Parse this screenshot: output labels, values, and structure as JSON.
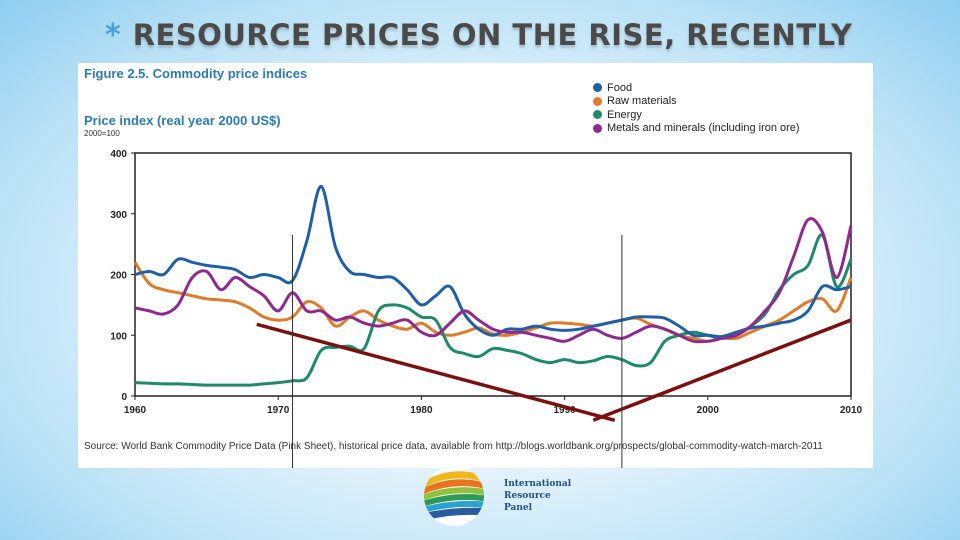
{
  "slide": {
    "title_star": "*",
    "title": "RESOURCE PRICES ON THE RISE, RECENTLY"
  },
  "figure": {
    "title": "Figure 2.5. Commodity price indices",
    "subtitle": "Price index (real year 2000 US$)",
    "basis": "2000=100",
    "source": "Source: World Bank Commodity Price Data (Pink Sheet), historical price data, available from http://blogs.worldbank.org/prospects/global-commodity-watch-march-2011"
  },
  "logo": {
    "line1": "International",
    "line2": "Resource",
    "line3": "Panel"
  },
  "chart_data": {
    "type": "line",
    "title": "Figure 2.5. Commodity price indices",
    "ylabel": "Price index (real year 2000 US$)",
    "xlim": [
      1960,
      2010
    ],
    "ylim": [
      0,
      400
    ],
    "x_ticks": [
      1960,
      1970,
      1980,
      1990,
      2000,
      2010
    ],
    "y_ticks": [
      0,
      100,
      200,
      300,
      400
    ],
    "grid": false,
    "legend_position": "top-right",
    "series": [
      {
        "name": "Food",
        "color": "#1f5fa8",
        "x": [
          1960,
          1961,
          1962,
          1963,
          1964,
          1965,
          1966,
          1967,
          1968,
          1969,
          1970,
          1971,
          1972,
          1973,
          1974,
          1975,
          1976,
          1977,
          1978,
          1979,
          1980,
          1981,
          1982,
          1983,
          1984,
          1985,
          1986,
          1987,
          1988,
          1989,
          1990,
          1991,
          1992,
          1993,
          1994,
          1995,
          1996,
          1997,
          1998,
          1999,
          2000,
          2001,
          2002,
          2003,
          2004,
          2005,
          2006,
          2007,
          2008,
          2009,
          2010
        ],
        "values": [
          200,
          205,
          200,
          225,
          220,
          215,
          212,
          208,
          195,
          200,
          195,
          190,
          255,
          345,
          245,
          205,
          200,
          195,
          195,
          175,
          150,
          165,
          180,
          135,
          110,
          100,
          110,
          110,
          115,
          110,
          108,
          110,
          115,
          120,
          125,
          130,
          130,
          128,
          115,
          100,
          100,
          98,
          105,
          112,
          115,
          120,
          125,
          140,
          180,
          175,
          180
        ]
      },
      {
        "name": "Raw materials",
        "color": "#e07b2a",
        "x": [
          1960,
          1961,
          1962,
          1963,
          1964,
          1965,
          1966,
          1967,
          1968,
          1969,
          1970,
          1971,
          1972,
          1973,
          1974,
          1975,
          1976,
          1977,
          1978,
          1979,
          1980,
          1981,
          1982,
          1983,
          1984,
          1985,
          1986,
          1987,
          1988,
          1989,
          1990,
          1991,
          1992,
          1993,
          1994,
          1995,
          1996,
          1997,
          1998,
          1999,
          2000,
          2001,
          2002,
          2003,
          2004,
          2005,
          2006,
          2007,
          2008,
          2009,
          2010
        ],
        "values": [
          220,
          185,
          175,
          170,
          165,
          160,
          158,
          155,
          145,
          130,
          125,
          130,
          155,
          145,
          115,
          130,
          140,
          125,
          115,
          110,
          120,
          105,
          100,
          105,
          112,
          102,
          100,
          105,
          112,
          120,
          120,
          118,
          115,
          120,
          125,
          128,
          118,
          110,
          100,
          95,
          90,
          95,
          95,
          105,
          115,
          125,
          140,
          155,
          160,
          140,
          195
        ]
      },
      {
        "name": "Energy",
        "color": "#1e8a6a",
        "x": [
          1960,
          1961,
          1962,
          1963,
          1964,
          1965,
          1966,
          1967,
          1968,
          1969,
          1970,
          1971,
          1972,
          1973,
          1974,
          1975,
          1976,
          1977,
          1978,
          1979,
          1980,
          1981,
          1982,
          1983,
          1984,
          1985,
          1986,
          1987,
          1988,
          1989,
          1990,
          1991,
          1992,
          1993,
          1994,
          1995,
          1996,
          1997,
          1998,
          1999,
          2000,
          2001,
          2002,
          2003,
          2004,
          2005,
          2006,
          2007,
          2008,
          2009,
          2010
        ],
        "values": [
          22,
          21,
          20,
          20,
          19,
          18,
          18,
          18,
          18,
          20,
          22,
          25,
          30,
          75,
          80,
          82,
          78,
          140,
          150,
          145,
          130,
          125,
          80,
          70,
          65,
          78,
          75,
          70,
          60,
          55,
          60,
          55,
          58,
          65,
          60,
          50,
          55,
          90,
          100,
          105,
          100,
          95,
          100,
          115,
          135,
          175,
          200,
          215,
          265,
          180,
          225
        ]
      },
      {
        "name": "Metals and minerals (including iron ore)",
        "color": "#8e2a8e",
        "x": [
          1960,
          1961,
          1962,
          1963,
          1964,
          1965,
          1966,
          1967,
          1968,
          1969,
          1970,
          1971,
          1972,
          1973,
          1974,
          1975,
          1976,
          1977,
          1978,
          1979,
          1980,
          1981,
          1982,
          1983,
          1984,
          1985,
          1986,
          1987,
          1988,
          1989,
          1990,
          1991,
          1992,
          1993,
          1994,
          1995,
          1996,
          1997,
          1998,
          1999,
          2000,
          2001,
          2002,
          2003,
          2004,
          2005,
          2006,
          2007,
          2008,
          2009,
          2010
        ],
        "values": [
          145,
          140,
          135,
          150,
          195,
          205,
          175,
          195,
          180,
          165,
          140,
          170,
          140,
          140,
          125,
          130,
          120,
          115,
          120,
          125,
          105,
          100,
          120,
          140,
          125,
          110,
          105,
          105,
          100,
          95,
          90,
          100,
          110,
          100,
          95,
          105,
          115,
          110,
          100,
          90,
          90,
          95,
          100,
          115,
          140,
          170,
          230,
          290,
          270,
          195,
          280
        ]
      }
    ],
    "annotations": [
      {
        "type": "trend-line",
        "color": "#7a1010",
        "from": {
          "x": 1968.5,
          "y": 118
        },
        "to": {
          "x": 1993.5,
          "y": -40
        }
      },
      {
        "type": "trend-line",
        "color": "#7a1010",
        "from": {
          "x": 1992,
          "y": -40
        },
        "to": {
          "x": 2010,
          "y": 125
        }
      },
      {
        "type": "vertical-marker",
        "color": "#333333",
        "x": 1971
      },
      {
        "type": "vertical-marker",
        "color": "#333333",
        "x": 1994
      }
    ]
  }
}
